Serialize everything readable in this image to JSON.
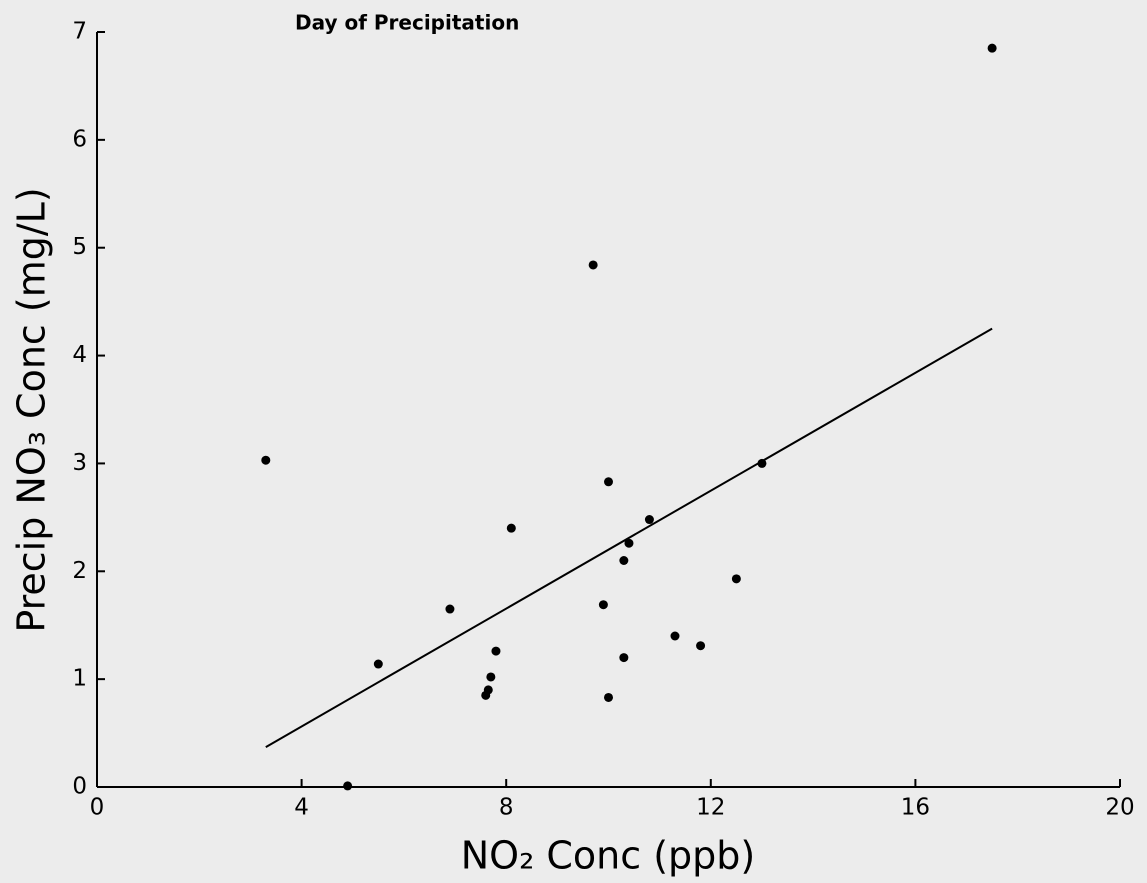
{
  "chart_data": {
    "type": "scatter",
    "title": "Day of Precipitation",
    "x_label": "NO₂ Conc (ppb)",
    "y_label": "Precip NO₃ Conc (mg/L)",
    "x": [
      3.3,
      4.9,
      5.5,
      6.9,
      7.6,
      7.65,
      7.7,
      7.8,
      8.1,
      9.7,
      9.9,
      10.0,
      10.0,
      10.3,
      10.3,
      10.4,
      10.8,
      11.3,
      11.8,
      12.5,
      13.0,
      17.5
    ],
    "series": [
      {
        "name": "Precip NO3",
        "color": "#000000",
        "values": [
          3.03,
          0.01,
          1.14,
          1.65,
          0.85,
          0.9,
          1.02,
          1.26,
          2.4,
          4.84,
          1.69,
          2.83,
          0.83,
          1.2,
          2.1,
          2.26,
          2.48,
          1.4,
          1.31,
          1.93,
          3.0,
          6.85
        ]
      }
    ],
    "trendline": {
      "x": [
        3.3,
        17.5
      ],
      "y": [
        0.37,
        4.25
      ],
      "color": "#000000"
    },
    "xlim": [
      0,
      20
    ],
    "xticks": [
      0,
      4,
      8,
      12,
      16,
      20
    ],
    "ylim": [
      0,
      7
    ],
    "yticks": [
      0,
      1,
      2,
      3,
      4,
      5,
      6,
      7
    ],
    "grid": false
  }
}
